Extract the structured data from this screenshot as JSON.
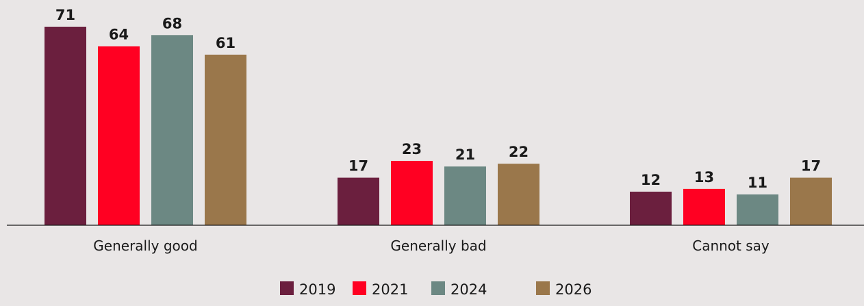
{
  "chart_data": {
    "type": "bar",
    "categories": [
      "Generally good",
      "Generally bad",
      "Cannot say"
    ],
    "series": [
      {
        "name": "2019",
        "color": "#6b1f3e",
        "values": [
          71,
          17,
          12
        ]
      },
      {
        "name": "2021",
        "color": "#ff0022",
        "values": [
          64,
          23,
          13
        ]
      },
      {
        "name": "2024",
        "color": "#6c8883",
        "values": [
          68,
          21,
          11
        ]
      },
      {
        "name": "2026",
        "color": "#9a774b",
        "values": [
          61,
          22,
          17
        ]
      }
    ],
    "ylim": [
      0,
      71
    ],
    "grid": false,
    "legend_position": "bottom-center"
  }
}
